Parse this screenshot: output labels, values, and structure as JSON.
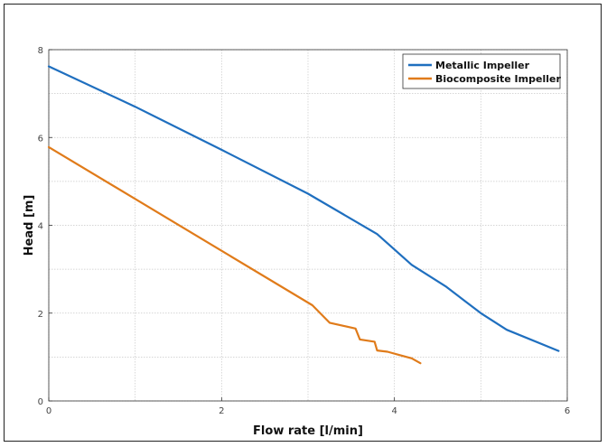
{
  "chart_data": {
    "type": "line",
    "title": "",
    "xlabel": "Flow rate [l/min]",
    "ylabel": "Head [m]",
    "xlim": [
      0,
      6
    ],
    "ylim": [
      0,
      8
    ],
    "xticks": [
      0,
      2,
      4,
      6
    ],
    "yticks": [
      0,
      2,
      4,
      6,
      8
    ],
    "x_gridlines": [
      0,
      1,
      2,
      3,
      4,
      5,
      6
    ],
    "y_gridlines": [
      0,
      1,
      2,
      3,
      4,
      5,
      6,
      7,
      8
    ],
    "grid": true,
    "legend_position": "top-right",
    "series": [
      {
        "name": "Metallic Impeller",
        "color": "#1f6fbf",
        "x": [
          0,
          1,
          2,
          3,
          3.8,
          4.2,
          4.6,
          4.8,
          5.0,
          5.3,
          5.9
        ],
        "y": [
          7.62,
          6.7,
          5.72,
          4.72,
          3.8,
          3.1,
          2.6,
          2.3,
          2.0,
          1.62,
          1.14
        ]
      },
      {
        "name": "Biocomposite Impeller",
        "color": "#e07b1a",
        "x": [
          0,
          1,
          2,
          3.05,
          3.25,
          3.55,
          3.6,
          3.77,
          3.8,
          3.92,
          4.05,
          4.2,
          4.3
        ],
        "y": [
          5.78,
          4.6,
          3.42,
          2.18,
          1.78,
          1.65,
          1.4,
          1.35,
          1.15,
          1.12,
          1.05,
          0.97,
          0.86
        ]
      }
    ]
  }
}
